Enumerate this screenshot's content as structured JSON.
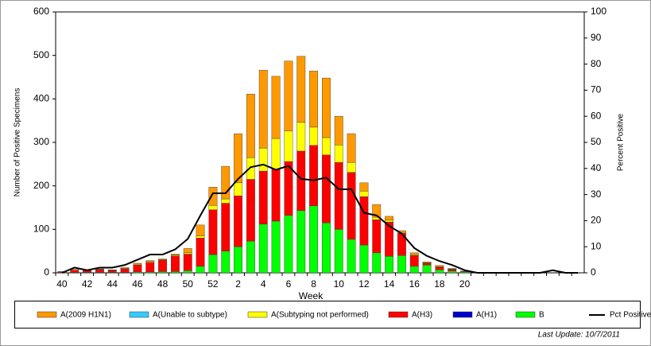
{
  "chart_data": {
    "type": "bar",
    "stacked": true,
    "x_label": "Week",
    "y_label": "Number of Positive Specimens",
    "y2_label": "Percent Positive",
    "footnote": "Last Update: 10/7/2011",
    "categories": [
      40,
      null,
      42,
      null,
      44,
      null,
      46,
      null,
      48,
      null,
      50,
      null,
      52,
      null,
      2,
      null,
      4,
      null,
      6,
      null,
      8,
      null,
      10,
      null,
      12,
      null,
      14,
      null,
      16,
      null,
      18,
      null,
      20,
      null,
      null,
      null,
      null,
      null,
      null,
      null,
      null,
      null
    ],
    "ylim": [
      0,
      600
    ],
    "yticks": [
      0,
      100,
      200,
      300,
      400,
      500,
      600
    ],
    "y2lim": [
      0,
      100
    ],
    "y2ticks": [
      0,
      10,
      20,
      30,
      40,
      50,
      60,
      70,
      80,
      90,
      100
    ],
    "series": [
      {
        "name": "A(2009 H1N1)",
        "color": "#ff9900",
        "values": [
          1,
          2,
          1,
          1,
          1,
          2,
          2,
          2,
          2,
          2,
          10,
          25,
          42,
          75,
          113,
          146,
          179,
          143,
          161,
          152,
          129,
          137,
          66,
          66,
          19,
          29,
          9,
          4,
          4,
          2,
          3,
          1,
          1,
          0,
          0,
          0,
          0,
          0,
          0,
          0,
          0,
          0
        ]
      },
      {
        "name": "A(Unable to subtype)",
        "color": "#33ccff",
        "values": [
          0,
          0,
          0,
          0,
          0,
          0,
          0,
          0,
          0,
          0,
          0,
          0,
          0,
          0,
          0,
          0,
          0,
          0,
          0,
          0,
          0,
          0,
          0,
          0,
          0,
          0,
          0,
          0,
          0,
          0,
          0,
          0,
          0,
          0,
          0,
          0,
          0,
          0,
          0,
          0,
          0,
          0
        ]
      },
      {
        "name": "A(Subtyping not performed)",
        "color": "#ffff00",
        "values": [
          0,
          0,
          1,
          1,
          1,
          1,
          2,
          2,
          1,
          2,
          3,
          5,
          10,
          10,
          30,
          50,
          53,
          71,
          70,
          66,
          42,
          40,
          40,
          23,
          13,
          6,
          4,
          2,
          2,
          1,
          1,
          1,
          0,
          0,
          0,
          0,
          0,
          0,
          0,
          0,
          0,
          0
        ]
      },
      {
        "name": "A(H3)",
        "color": "#ff0000",
        "values": [
          2,
          5,
          4,
          6,
          4,
          8,
          16,
          22,
          26,
          36,
          38,
          65,
          103,
          110,
          117,
          142,
          122,
          119,
          124,
          137,
          139,
          156,
          154,
          154,
          111,
          76,
          79,
          51,
          25,
          4,
          6,
          4,
          1,
          0,
          0,
          0,
          0,
          0,
          0,
          0,
          0,
          0
        ]
      },
      {
        "name": "A(H1)",
        "color": "#0000cc",
        "values": [
          0,
          0,
          0,
          0,
          0,
          0,
          0,
          0,
          0,
          0,
          0,
          0,
          0,
          0,
          0,
          0,
          0,
          0,
          0,
          0,
          0,
          0,
          0,
          0,
          0,
          0,
          0,
          0,
          0,
          0,
          0,
          0,
          0,
          0,
          0,
          0,
          0,
          0,
          0,
          0,
          0,
          0
        ]
      },
      {
        "name": "B",
        "color": "#00ff00",
        "values": [
          0,
          1,
          1,
          1,
          1,
          1,
          2,
          2,
          3,
          3,
          5,
          15,
          42,
          50,
          60,
          73,
          112,
          119,
          132,
          143,
          154,
          115,
          100,
          77,
          64,
          46,
          38,
          40,
          15,
          18,
          7,
          4,
          2,
          0,
          0,
          0,
          0,
          0,
          0,
          0,
          0,
          0
        ]
      },
      {
        "name": "Pct Positive",
        "type": "line",
        "axis": "y2",
        "color": "#000000",
        "values": [
          0,
          2,
          1,
          2,
          2,
          3,
          5,
          7,
          7,
          9,
          13,
          22,
          30.5,
          30.5,
          36,
          40.5,
          41.5,
          39.5,
          41,
          36,
          35.5,
          36.5,
          32,
          32,
          23,
          22,
          18,
          15,
          9.5,
          6.5,
          4.5,
          3,
          1,
          0,
          0,
          0,
          0,
          0,
          0,
          1,
          0,
          0
        ]
      }
    ]
  }
}
